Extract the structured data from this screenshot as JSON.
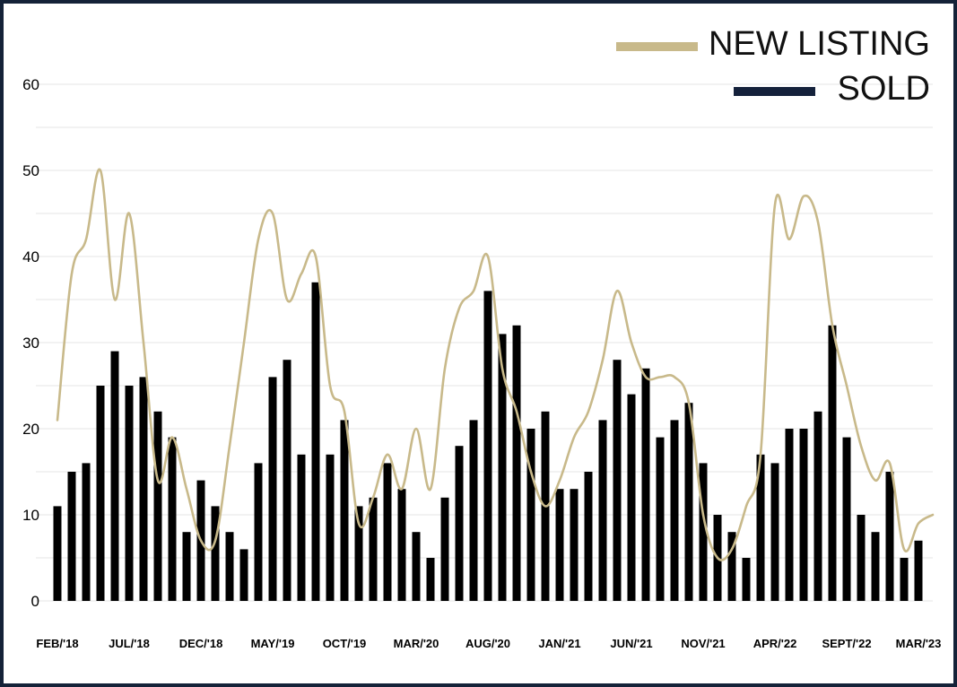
{
  "chart_data": {
    "type": "bar",
    "title": "",
    "xlabel": "",
    "ylabel": "",
    "ylim": [
      0,
      60
    ],
    "y_ticks": [
      0,
      10,
      20,
      30,
      40,
      50,
      60
    ],
    "grid": true,
    "legend_position": "top-right",
    "colors": {
      "new_listing": "#c8b98a",
      "sold_legend": "#14213b",
      "sold_bars": "#000000",
      "border": "#142238",
      "grid": "#e6e6e6"
    },
    "x_tick_labels": [
      "FEB/'18",
      "JUL/'18",
      "DEC/'18",
      "MAY/'19",
      "OCT/'19",
      "MAR/'20",
      "AUG/'20",
      "JAN/'21",
      "JUN/'21",
      "NOV/'21",
      "APR/'22",
      "SEPT/'22",
      "MAR/'23"
    ],
    "x_tick_indices": [
      0,
      5,
      10,
      15,
      20,
      25,
      30,
      35,
      40,
      45,
      50,
      55,
      60
    ],
    "series": [
      {
        "name": "NEW LISTING",
        "type": "line",
        "values": [
          21,
          38,
          42,
          50,
          35,
          45,
          30,
          14,
          19,
          13,
          7,
          7,
          18,
          30,
          42,
          45,
          35,
          38,
          40,
          25,
          22,
          9,
          12,
          17,
          13,
          20,
          13,
          27,
          34,
          36,
          40,
          27,
          22,
          15,
          11,
          14,
          19,
          22,
          28,
          36,
          30,
          26,
          26,
          26,
          23,
          10,
          5,
          6,
          11,
          17,
          46,
          42,
          47,
          44,
          32,
          25,
          18,
          14,
          16,
          6,
          9,
          10
        ]
      },
      {
        "name": "SOLD",
        "type": "bar",
        "values": [
          11,
          15,
          16,
          25,
          29,
          25,
          26,
          22,
          19,
          8,
          14,
          11,
          8,
          6,
          16,
          26,
          28,
          17,
          37,
          17,
          21,
          11,
          12,
          16,
          13,
          8,
          5,
          12,
          18,
          21,
          36,
          31,
          32,
          20,
          22,
          13,
          13,
          15,
          21,
          28,
          24,
          27,
          19,
          21,
          23,
          16,
          10,
          8,
          5,
          17,
          16,
          20,
          20,
          22,
          32,
          19,
          10,
          8,
          15,
          5,
          7
        ]
      }
    ]
  }
}
